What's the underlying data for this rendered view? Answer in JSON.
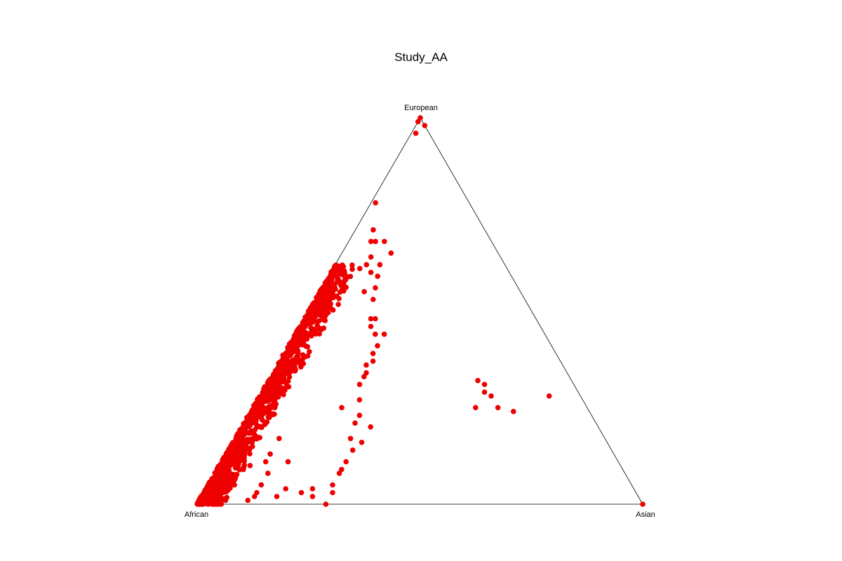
{
  "chart_data": {
    "type": "scatter",
    "subtype": "ternary",
    "title": "Study_AA",
    "vertices": {
      "top": "European",
      "left": "African",
      "right": "Asian"
    },
    "components": [
      "African",
      "European",
      "Asian"
    ],
    "point_color": "#ee0000",
    "frame_color": "#000000",
    "grid": false,
    "legend": "none",
    "series": [
      {
        "values": [
          [
            0.0,
            1.0,
            0.0
          ],
          [
            0.01,
            0.99,
            0.0
          ],
          [
            0.0,
            0.98,
            0.02
          ],
          [
            0.03,
            0.96,
            0.01
          ],
          [
            0.21,
            0.78,
            0.01
          ],
          [
            0.25,
            0.71,
            0.04
          ],
          [
            0.27,
            0.68,
            0.05
          ],
          [
            0.26,
            0.68,
            0.06
          ],
          [
            0.24,
            0.68,
            0.08
          ],
          [
            0.24,
            0.65,
            0.11
          ],
          [
            0.29,
            0.64,
            0.07
          ],
          [
            0.33,
            0.61,
            0.06
          ],
          [
            0.31,
            0.62,
            0.07
          ],
          [
            0.32,
            0.56,
            0.12
          ],
          [
            0.34,
            0.53,
            0.13
          ],
          [
            0.35,
            0.55,
            0.1
          ],
          [
            0.31,
            0.6,
            0.09
          ],
          [
            0.28,
            0.62,
            0.1
          ],
          [
            0.3,
            0.59,
            0.11
          ],
          [
            0.37,
            0.48,
            0.15
          ],
          [
            0.36,
            0.48,
            0.16
          ],
          [
            0.38,
            0.46,
            0.16
          ],
          [
            0.36,
            0.44,
            0.2
          ],
          [
            0.38,
            0.44,
            0.18
          ],
          [
            0.42,
            0.37,
            0.21
          ],
          [
            0.44,
            0.36,
            0.2
          ],
          [
            0.46,
            0.33,
            0.21
          ],
          [
            0.45,
            0.34,
            0.21
          ],
          [
            0.41,
            0.39,
            0.2
          ],
          [
            0.39,
            0.41,
            0.2
          ],
          [
            0.48,
            0.31,
            0.21
          ],
          [
            0.5,
            0.27,
            0.23
          ],
          [
            0.52,
            0.23,
            0.25
          ],
          [
            0.54,
            0.21,
            0.25
          ],
          [
            0.51,
            0.2,
            0.29
          ],
          [
            0.55,
            0.16,
            0.29
          ],
          [
            0.57,
            0.17,
            0.26
          ],
          [
            0.58,
            0.14,
            0.28
          ],
          [
            0.61,
            0.11,
            0.28
          ],
          [
            0.63,
            0.09,
            0.28
          ],
          [
            0.64,
            0.08,
            0.28
          ],
          [
            0.67,
            0.05,
            0.28
          ],
          [
            0.68,
            0.03,
            0.29
          ],
          [
            0.72,
            0.04,
            0.24
          ],
          [
            0.73,
            0.02,
            0.25
          ],
          [
            0.71,
            0.0,
            0.29
          ],
          [
            0.75,
            0.03,
            0.22
          ],
          [
            0.81,
            0.02,
            0.17
          ],
          [
            0.78,
            0.04,
            0.18
          ],
          [
            0.83,
            0.05,
            0.12
          ],
          [
            0.85,
            0.03,
            0.12
          ],
          [
            0.88,
            0.01,
            0.11
          ],
          [
            0.93,
            0.01,
            0.06
          ],
          [
            0.95,
            0.0,
            0.05
          ],
          [
            0.79,
            0.11,
            0.1
          ],
          [
            0.74,
            0.11,
            0.15
          ],
          [
            0.83,
            0.1,
            0.07
          ],
          [
            0.8,
            0.08,
            0.12
          ],
          [
            0.86,
            0.02,
            0.12
          ],
          [
            0.89,
            0.05,
            0.06
          ],
          [
            0.21,
            0.29,
            0.5
          ],
          [
            0.2,
            0.28,
            0.52
          ],
          [
            0.2,
            0.25,
            0.55
          ],
          [
            0.17,
            0.24,
            0.59
          ],
          [
            0.21,
            0.32,
            0.47
          ],
          [
            0.2,
            0.31,
            0.49
          ],
          [
            0.07,
            0.28,
            0.65
          ],
          [
            0.0,
            0.0,
            1.0
          ],
          [
            0.25,
            0.25,
            0.5
          ],
          [
            0.55,
            0.25,
            0.2
          ],
          [
            0.7,
            0.25,
            0.05
          ],
          [
            0.73,
            0.17,
            0.1
          ],
          [
            0.77,
            0.13,
            0.1
          ],
          [
            0.85,
            0.09,
            0.06
          ]
        ]
      }
    ]
  }
}
